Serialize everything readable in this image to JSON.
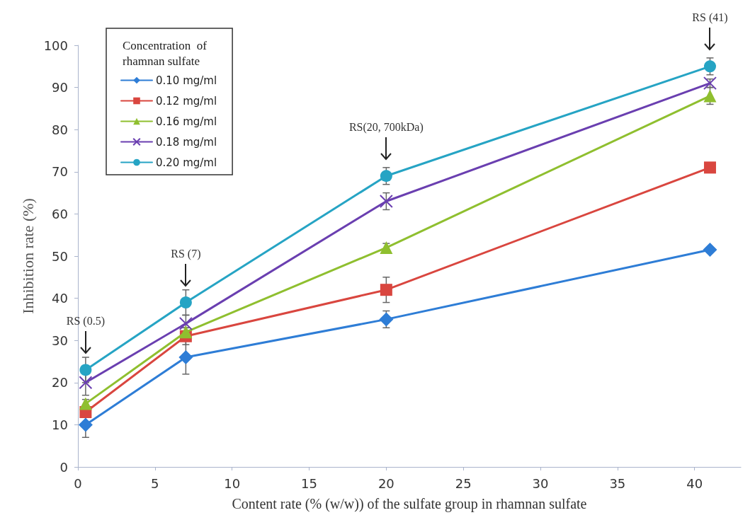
{
  "chart_data": {
    "type": "line",
    "xlabel": "Content rate (% (w/w)) of the sulfate group in rhamnan sulfate",
    "ylabel": "Inhibition rate (%)",
    "legend_title": "Concentration  of rhamnan sulfate",
    "x": [
      0.5,
      7,
      20,
      41
    ],
    "series": [
      {
        "name": "0.10 mg/ml",
        "color": "#2e7dd6",
        "marker": "diamond",
        "values": [
          10,
          26,
          35,
          51.5
        ],
        "errors": [
          3,
          4,
          2,
          null
        ]
      },
      {
        "name": "0.12 mg/ml",
        "color": "#d9463f",
        "marker": "square",
        "values": [
          13,
          31,
          42,
          71
        ],
        "errors": [
          null,
          2,
          3,
          null
        ]
      },
      {
        "name": "0.16 mg/ml",
        "color": "#8fbf2f",
        "marker": "triangle",
        "values": [
          15,
          32,
          52,
          88
        ],
        "errors": [
          1,
          1,
          1,
          2
        ]
      },
      {
        "name": "0.18 mg/ml",
        "color": "#6a3fb0",
        "marker": "cross",
        "values": [
          20,
          34,
          63,
          91
        ],
        "errors": [
          3,
          2,
          2,
          1
        ]
      },
      {
        "name": "0.20 mg/ml",
        "color": "#26a4c4",
        "marker": "circle",
        "values": [
          23,
          39,
          69,
          95
        ],
        "errors": [
          3,
          3,
          2,
          2
        ]
      }
    ],
    "annotations": [
      "RS (0.5)",
      "RS (7)",
      "RS(20, 700kDa)",
      "RS (41)"
    ],
    "xlim": [
      0,
      43
    ],
    "xticks": [
      0,
      5,
      10,
      15,
      20,
      25,
      30,
      35,
      40
    ],
    "ylim": [
      0,
      100
    ],
    "yticks": [
      0,
      10,
      20,
      30,
      40,
      50,
      60,
      70,
      80,
      90,
      100
    ],
    "grid": false,
    "legend": "top left",
    "line_style": "solid"
  }
}
